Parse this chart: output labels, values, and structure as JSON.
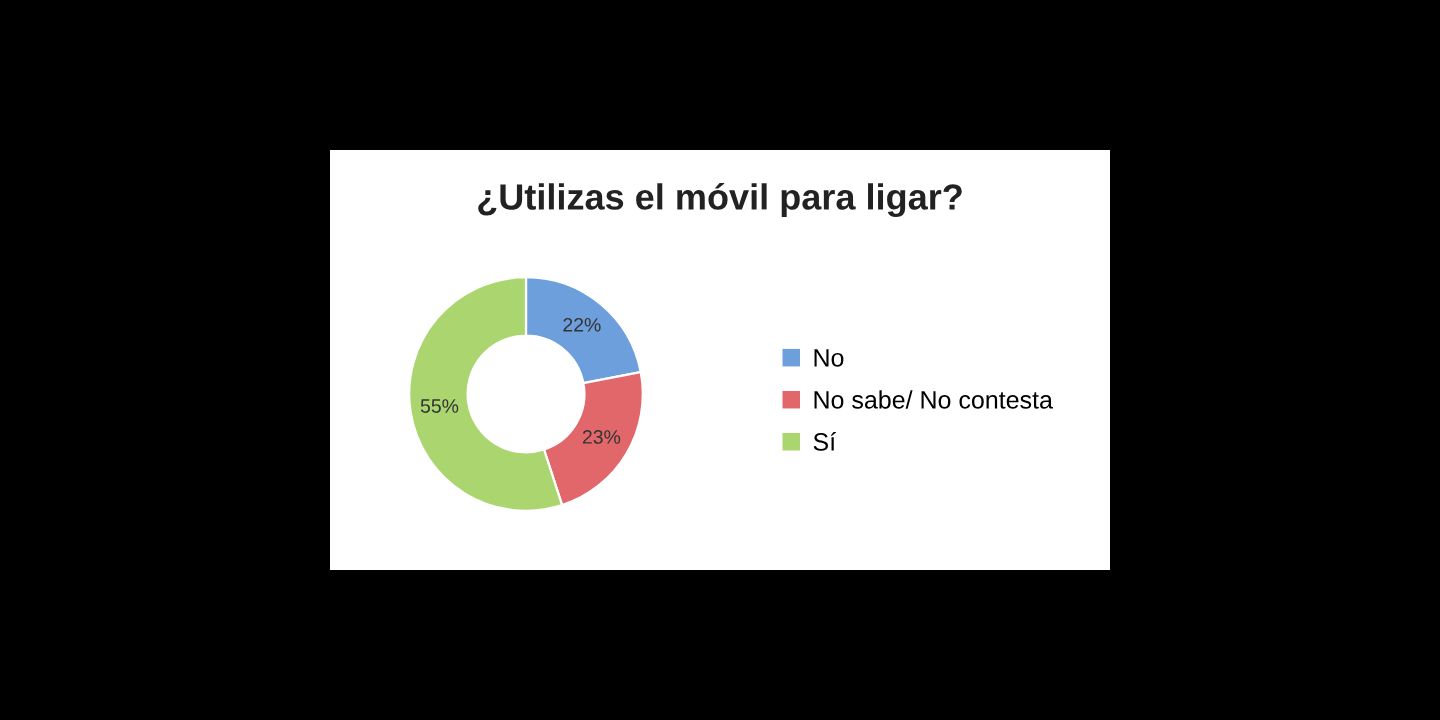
{
  "chart_data": {
    "type": "donut",
    "title": "¿Utilizas el móvil para ligar?",
    "categories": [
      "No",
      "No sabe/ No contesta",
      "Sí"
    ],
    "values": [
      22,
      23,
      55
    ],
    "colors": [
      "#6d9fdc",
      "#e2676a",
      "#aad56f"
    ],
    "value_labels": [
      "22%",
      "23%",
      "55%"
    ],
    "legend": "right"
  }
}
